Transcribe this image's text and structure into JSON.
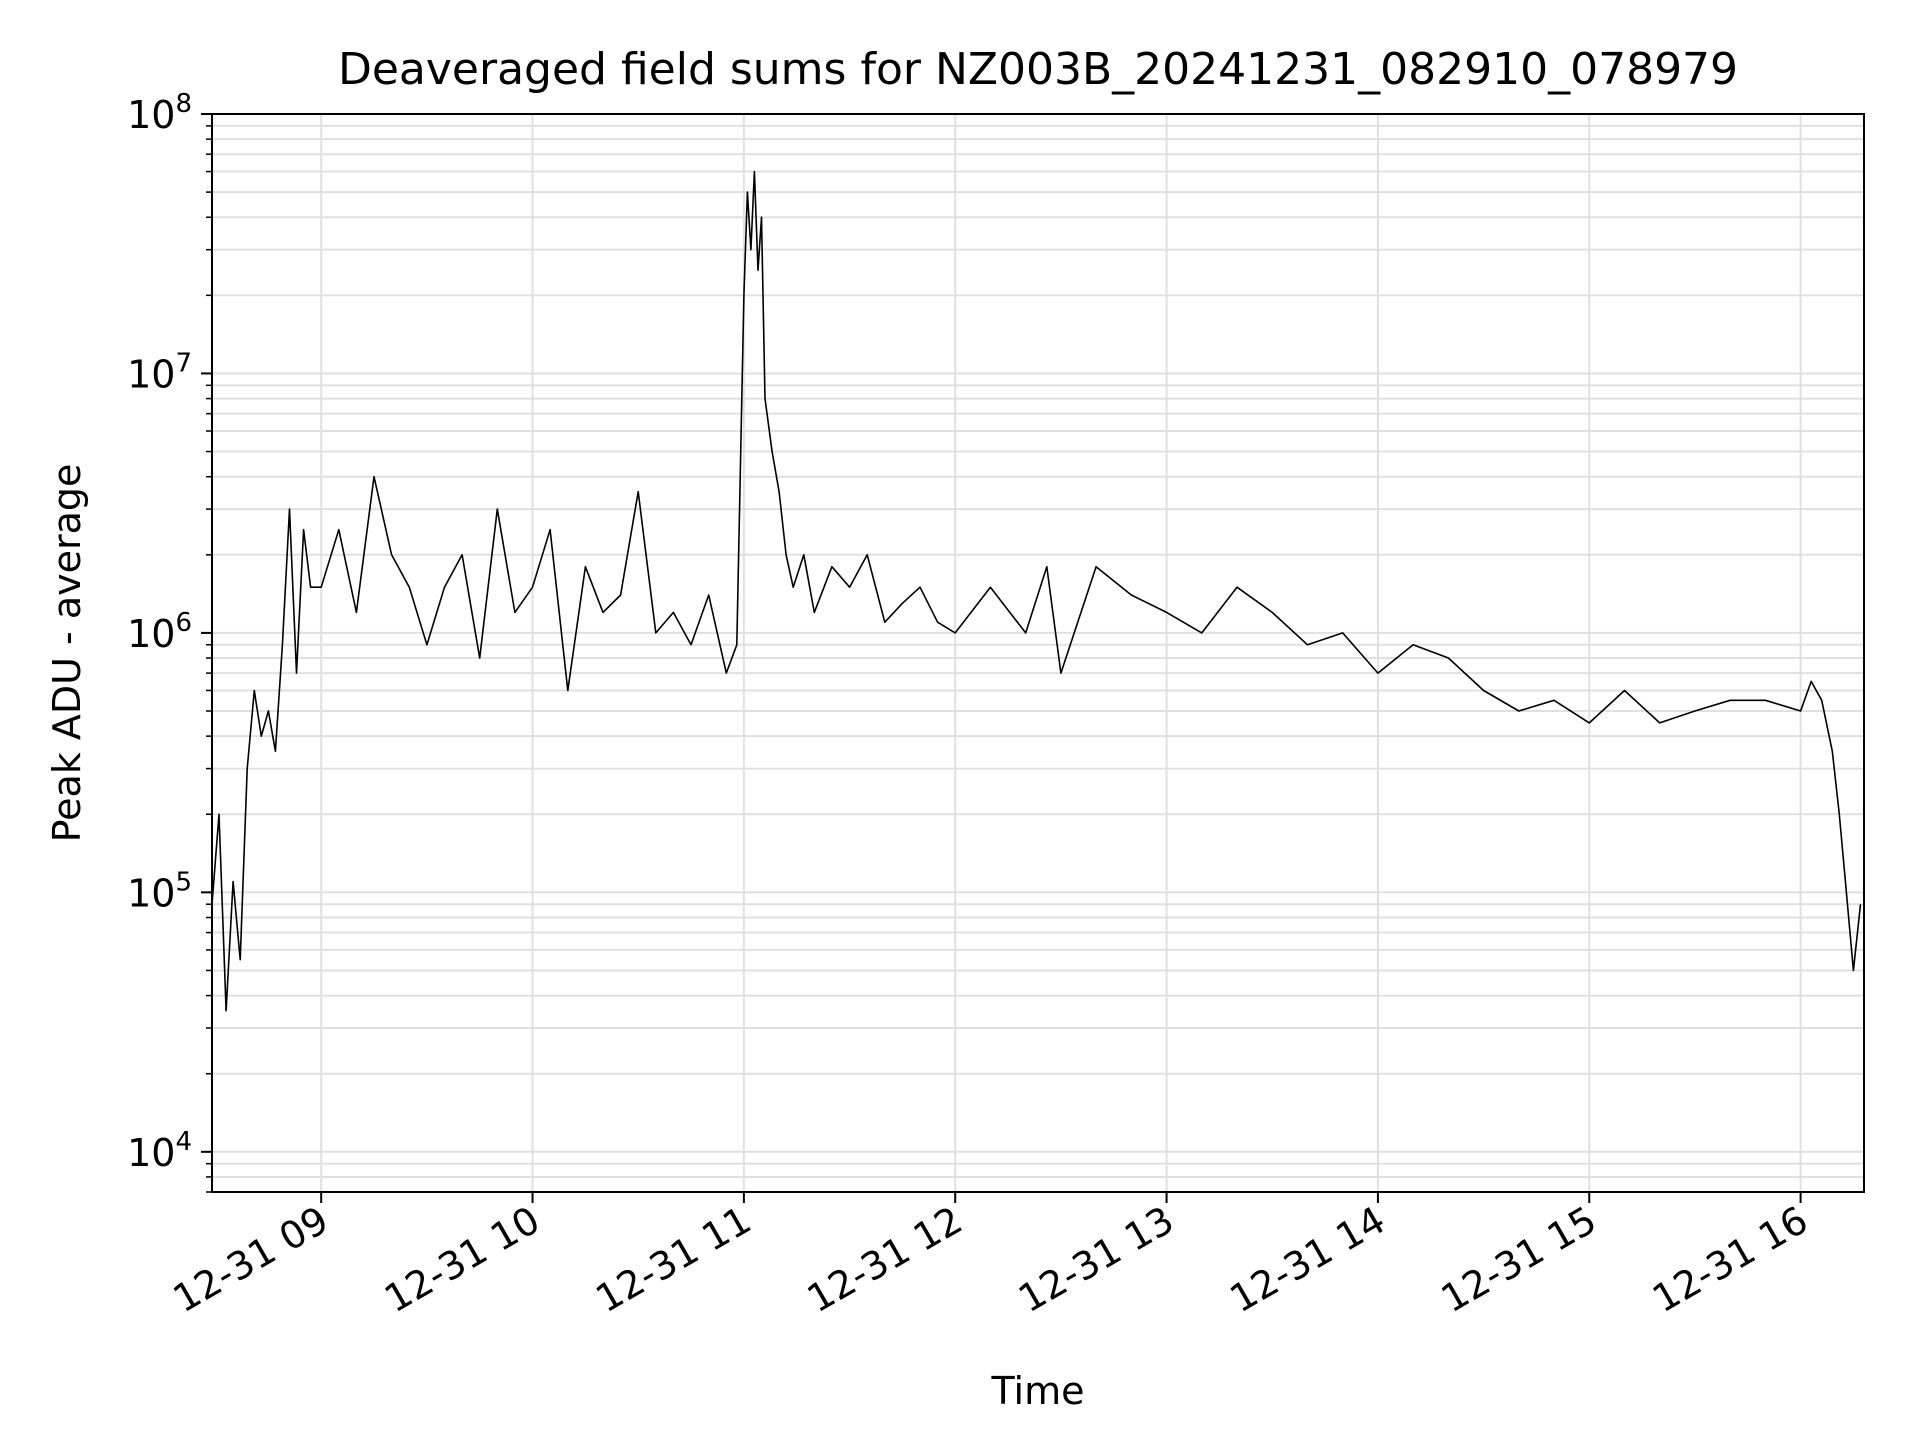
{
  "chart_data": {
    "type": "line",
    "title": "Deaveraged field sums for NZ003B_20241231_082910_078979",
    "xlabel": "Time",
    "ylabel": "Peak ADU - average",
    "y_scale": "log",
    "ylim": [
      7000,
      100000000
    ],
    "xlim": [
      "2024-12-31 08:29",
      "2024-12-31 16:18"
    ],
    "grid": true,
    "line_color": "#000000",
    "grid_color": "#e0e0e0",
    "x_ticks": [
      {
        "label": "12-31 09",
        "value": "2024-12-31 09:00"
      },
      {
        "label": "12-31 10",
        "value": "2024-12-31 10:00"
      },
      {
        "label": "12-31 11",
        "value": "2024-12-31 11:00"
      },
      {
        "label": "12-31 12",
        "value": "2024-12-31 12:00"
      },
      {
        "label": "12-31 13",
        "value": "2024-12-31 13:00"
      },
      {
        "label": "12-31 14",
        "value": "2024-12-31 14:00"
      },
      {
        "label": "12-31 15",
        "value": "2024-12-31 15:00"
      },
      {
        "label": "12-31 16",
        "value": "2024-12-31 16:00"
      }
    ],
    "y_ticks": [
      {
        "base": "10",
        "exp": "4",
        "value": 10000
      },
      {
        "base": "10",
        "exp": "5",
        "value": 100000
      },
      {
        "base": "10",
        "exp": "6",
        "value": 1000000
      },
      {
        "base": "10",
        "exp": "7",
        "value": 10000000
      },
      {
        "base": "10",
        "exp": "8",
        "value": 100000000
      }
    ],
    "series": [
      {
        "x": [
          "2024-12-31 08:29",
          "2024-12-31 08:31",
          "2024-12-31 08:33",
          "2024-12-31 08:35",
          "2024-12-31 08:37",
          "2024-12-31 08:39",
          "2024-12-31 08:41",
          "2024-12-31 08:43",
          "2024-12-31 08:45",
          "2024-12-31 08:47",
          "2024-12-31 08:49",
          "2024-12-31 08:51",
          "2024-12-31 08:53",
          "2024-12-31 08:55",
          "2024-12-31 08:57",
          "2024-12-31 09:00",
          "2024-12-31 09:05",
          "2024-12-31 09:10",
          "2024-12-31 09:15",
          "2024-12-31 09:20",
          "2024-12-31 09:25",
          "2024-12-31 09:30",
          "2024-12-31 09:35",
          "2024-12-31 09:40",
          "2024-12-31 09:45",
          "2024-12-31 09:50",
          "2024-12-31 09:55",
          "2024-12-31 10:00",
          "2024-12-31 10:05",
          "2024-12-31 10:10",
          "2024-12-31 10:15",
          "2024-12-31 10:20",
          "2024-12-31 10:25",
          "2024-12-31 10:30",
          "2024-12-31 10:35",
          "2024-12-31 10:40",
          "2024-12-31 10:45",
          "2024-12-31 10:50",
          "2024-12-31 10:55",
          "2024-12-31 10:58",
          "2024-12-31 11:00",
          "2024-12-31 11:01",
          "2024-12-31 11:02",
          "2024-12-31 11:03",
          "2024-12-31 11:04",
          "2024-12-31 11:05",
          "2024-12-31 11:06",
          "2024-12-31 11:08",
          "2024-12-31 11:10",
          "2024-12-31 11:12",
          "2024-12-31 11:14",
          "2024-12-31 11:17",
          "2024-12-31 11:20",
          "2024-12-31 11:25",
          "2024-12-31 11:30",
          "2024-12-31 11:35",
          "2024-12-31 11:40",
          "2024-12-31 11:45",
          "2024-12-31 11:50",
          "2024-12-31 11:55",
          "2024-12-31 12:00",
          "2024-12-31 12:10",
          "2024-12-31 12:20",
          "2024-12-31 12:26",
          "2024-12-31 12:30",
          "2024-12-31 12:40",
          "2024-12-31 12:50",
          "2024-12-31 13:00",
          "2024-12-31 13:10",
          "2024-12-31 13:20",
          "2024-12-31 13:30",
          "2024-12-31 13:40",
          "2024-12-31 13:50",
          "2024-12-31 14:00",
          "2024-12-31 14:10",
          "2024-12-31 14:20",
          "2024-12-31 14:30",
          "2024-12-31 14:40",
          "2024-12-31 14:50",
          "2024-12-31 15:00",
          "2024-12-31 15:10",
          "2024-12-31 15:20",
          "2024-12-31 15:30",
          "2024-12-31 15:40",
          "2024-12-31 15:50",
          "2024-12-31 16:00",
          "2024-12-31 16:03",
          "2024-12-31 16:06",
          "2024-12-31 16:09",
          "2024-12-31 16:11",
          "2024-12-31 16:13",
          "2024-12-31 16:15",
          "2024-12-31 16:17"
        ],
        "y": [
          90000,
          200000,
          35000,
          110000,
          55000,
          300000,
          600000,
          400000,
          500000,
          350000,
          900000,
          3000000,
          700000,
          2500000,
          1500000,
          1500000,
          2500000,
          1200000,
          4000000,
          2000000,
          1500000,
          900000,
          1500000,
          2000000,
          800000,
          3000000,
          1200000,
          1500000,
          2500000,
          600000,
          1800000,
          1200000,
          1400000,
          3500000,
          1000000,
          1200000,
          900000,
          1400000,
          700000,
          900000,
          20000000,
          50000000,
          30000000,
          60000000,
          25000000,
          40000000,
          8000000,
          5000000,
          3500000,
          2000000,
          1500000,
          2000000,
          1200000,
          1800000,
          1500000,
          2000000,
          1100000,
          1300000,
          1500000,
          1100000,
          1000000,
          1500000,
          1000000,
          1800000,
          700000,
          1800000,
          1400000,
          1200000,
          1000000,
          1500000,
          1200000,
          900000,
          1000000,
          700000,
          900000,
          800000,
          600000,
          500000,
          550000,
          450000,
          600000,
          450000,
          500000,
          550000,
          550000,
          500000,
          650000,
          550000,
          350000,
          200000,
          100000,
          50000,
          90000
        ]
      }
    ]
  }
}
